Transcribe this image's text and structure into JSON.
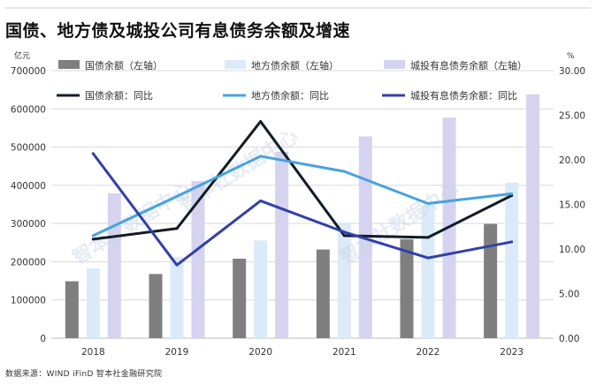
{
  "title": "国债、地方债及城投公司有息债务余额及增速",
  "footer": "数据来源：WIND iFinD 智本社金融研究院",
  "watermarks": [
    "智本社数据中心",
    "智本社数据中心",
    "智本社数据中心"
  ],
  "colors": {
    "guozhai_bar": "#7f7f7f",
    "difang_bar": "#dbeaf8",
    "chengtou_bar": "#d5d3f0",
    "guozhai_line": "#121c26",
    "difang_line": "#45a3e0",
    "chengtou_line": "#3340a8",
    "grid": "#d9d9d9"
  },
  "chart_data": {
    "type": "bar",
    "categories": [
      "2018",
      "2019",
      "2020",
      "2021",
      "2022",
      "2023"
    ],
    "y_left": {
      "unit": "亿元",
      "range": [
        0,
        700000
      ],
      "ticks": [
        "0",
        "100000",
        "200000",
        "300000",
        "400000",
        "500000",
        "600000",
        "700000"
      ]
    },
    "y_right": {
      "unit": "%",
      "range": [
        0,
        30
      ],
      "ticks": [
        "0.00",
        "5.00",
        "10.00",
        "15.00",
        "20.00",
        "25.00",
        "30.00"
      ]
    },
    "grid": true,
    "legend_position": "top",
    "series": [
      {
        "name": "国债余额（左轴）",
        "kind": "bar",
        "axis": "left",
        "color_key": "guozhai_bar",
        "values": [
          149000,
          168000,
          208000,
          232000,
          259000,
          299000
        ]
      },
      {
        "name": "地方债余额（左轴）",
        "kind": "bar",
        "axis": "left",
        "color_key": "difang_bar",
        "values": [
          183000,
          212000,
          256000,
          303000,
          348000,
          407000
        ]
      },
      {
        "name": "城投有息债务余额（左轴）",
        "kind": "bar",
        "axis": "left",
        "color_key": "chengtou_bar",
        "values": [
          379000,
          411000,
          488000,
          528000,
          577000,
          638000
        ]
      },
      {
        "name": "国债余额：同比",
        "kind": "line",
        "axis": "right",
        "color_key": "guozhai_line",
        "values": [
          11.1,
          12.3,
          24.3,
          11.5,
          11.3,
          16.0
        ]
      },
      {
        "name": "地方债余额：同比",
        "kind": "line",
        "axis": "right",
        "color_key": "difang_line",
        "values": [
          11.5,
          15.9,
          20.4,
          18.7,
          15.1,
          16.2
        ]
      },
      {
        "name": "城投有息债务余额：同比",
        "kind": "line",
        "axis": "right",
        "color_key": "chengtou_line",
        "values": [
          20.7,
          8.2,
          15.4,
          11.9,
          9.0,
          10.8
        ]
      }
    ]
  }
}
